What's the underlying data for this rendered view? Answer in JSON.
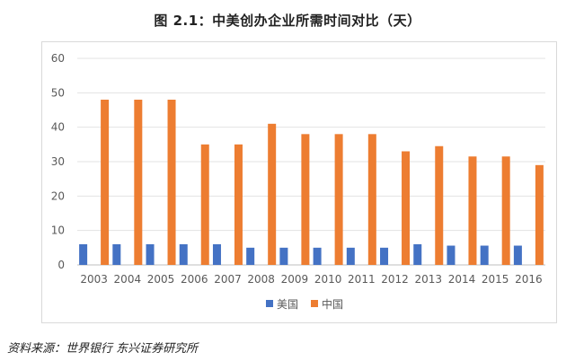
{
  "chart_data": {
    "type": "bar",
    "title": "图 2.1：中美创办企业所需时间对比（天）",
    "categories": [
      "2003",
      "2004",
      "2005",
      "2006",
      "2007",
      "2008",
      "2009",
      "2010",
      "2011",
      "2012",
      "2013",
      "2014",
      "2015",
      "2016"
    ],
    "series": [
      {
        "name": "美国",
        "color": "#4472C4",
        "values": [
          6,
          6,
          6,
          6,
          6,
          5,
          5,
          5,
          5,
          5,
          6,
          5.6,
          5.6,
          5.6
        ]
      },
      {
        "name": "中国",
        "color": "#ED7D31",
        "values": [
          48,
          48,
          48,
          35,
          35,
          41,
          38,
          38,
          38,
          33,
          34.5,
          31.5,
          31.5,
          29
        ]
      }
    ],
    "yticks": [
      0,
      10,
      20,
      30,
      40,
      50,
      60
    ],
    "ylim": [
      0,
      60
    ],
    "grid": true,
    "legend_position": "bottom",
    "source": "资料来源：世界银行  东兴证券研究所"
  }
}
